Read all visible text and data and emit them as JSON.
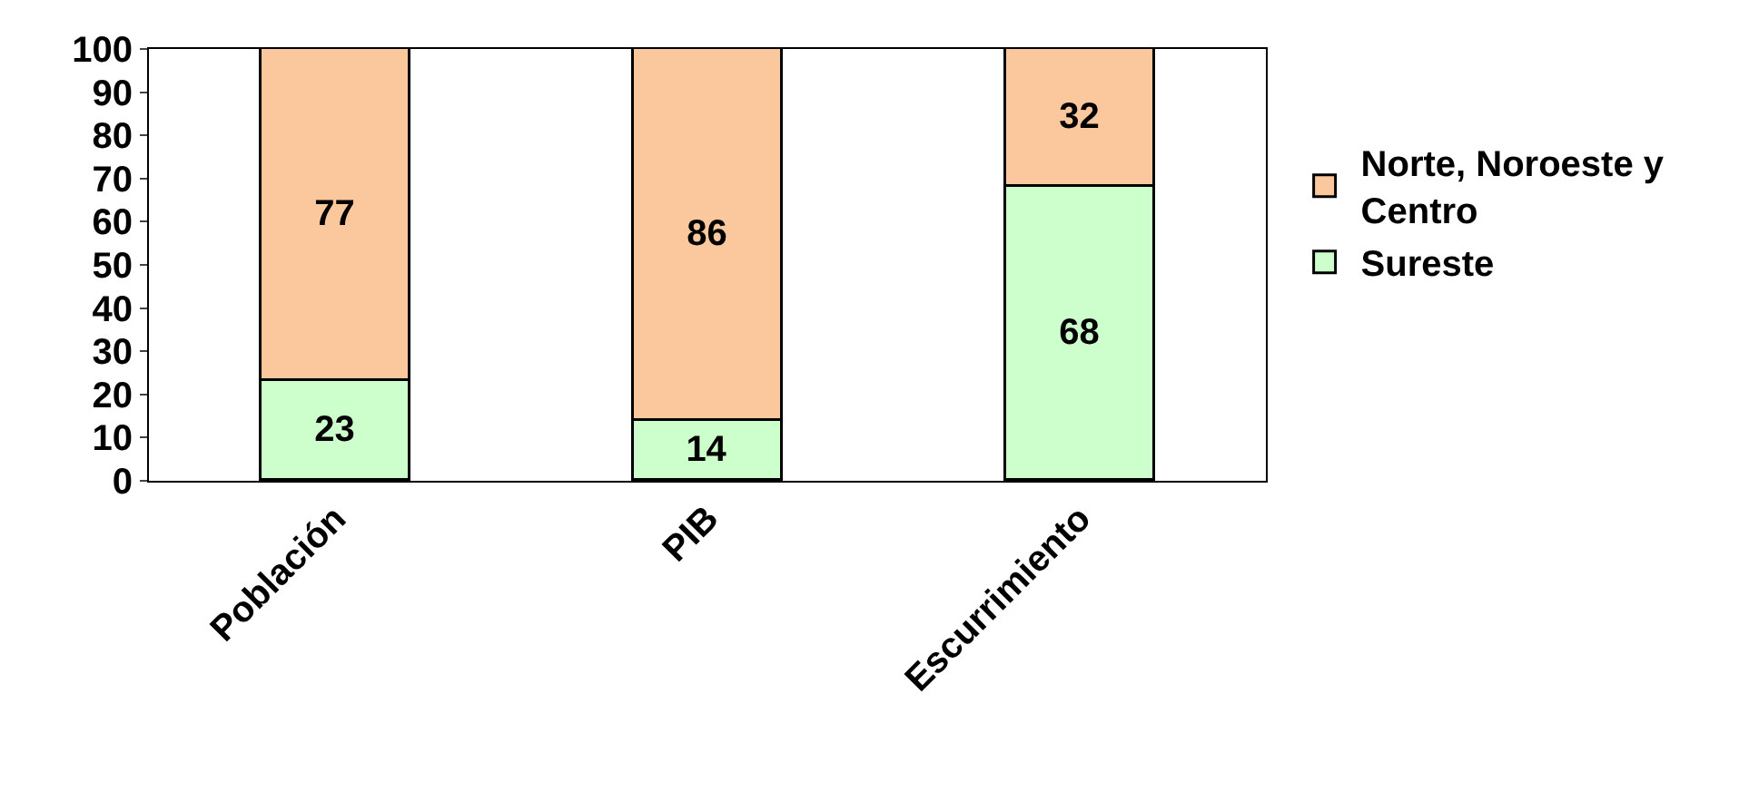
{
  "chart_data": {
    "type": "bar",
    "stacked": true,
    "categories": [
      "Población",
      "PIB",
      "Escurrimiento"
    ],
    "series": [
      {
        "name": "Sureste",
        "color": "#ccffcc",
        "values": [
          23,
          14,
          68
        ]
      },
      {
        "name": "Norte, Noroeste y Centro",
        "color": "#fac89c",
        "values": [
          77,
          86,
          32
        ]
      }
    ],
    "ylim": [
      0,
      100
    ],
    "yticks": [
      0,
      10,
      20,
      30,
      40,
      50,
      60,
      70,
      80,
      90,
      100
    ],
    "data_labels": true,
    "legend": "right"
  }
}
